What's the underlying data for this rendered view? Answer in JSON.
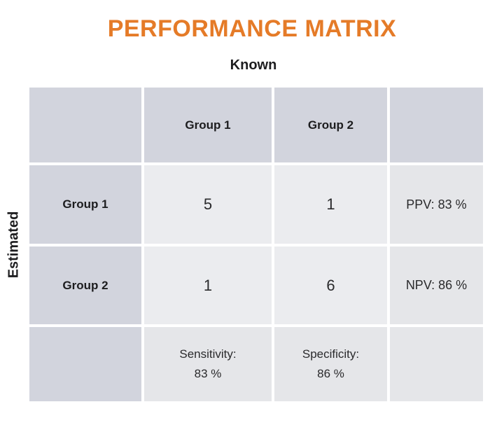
{
  "title": "PERFORMANCE MATRIX",
  "axes": {
    "top_label": "Known",
    "left_label": "Estimated"
  },
  "matrix": {
    "col_headers": [
      "Group 1",
      "Group 2"
    ],
    "row_headers": [
      "Group 1",
      "Group 2"
    ],
    "counts": [
      [
        "5",
        "1"
      ],
      [
        "1",
        "6"
      ]
    ],
    "ppv": "PPV: 83 %",
    "npv": "NPV: 86 %",
    "sensitivity_label": "Sensitivity:",
    "sensitivity_value": "83 %",
    "specificity_label": "Specificity:",
    "specificity_value": "86 %"
  },
  "colors": {
    "title_color": "#e57b28",
    "header_cell": "#d2d4dd",
    "count_cell": "#ebecef",
    "stat_cell": "#e5e6e9",
    "text_color": "#1d1d1f"
  },
  "chart_data": {
    "type": "table",
    "title": "PERFORMANCE MATRIX",
    "x_axis_label": "Known",
    "y_axis_label": "Estimated",
    "categories": [
      "Group 1",
      "Group 2"
    ],
    "confusion_matrix": [
      [
        5,
        1
      ],
      [
        1,
        6
      ]
    ],
    "stats": {
      "ppv_pct": 83,
      "npv_pct": 86,
      "sensitivity_pct": 83,
      "specificity_pct": 86
    }
  }
}
